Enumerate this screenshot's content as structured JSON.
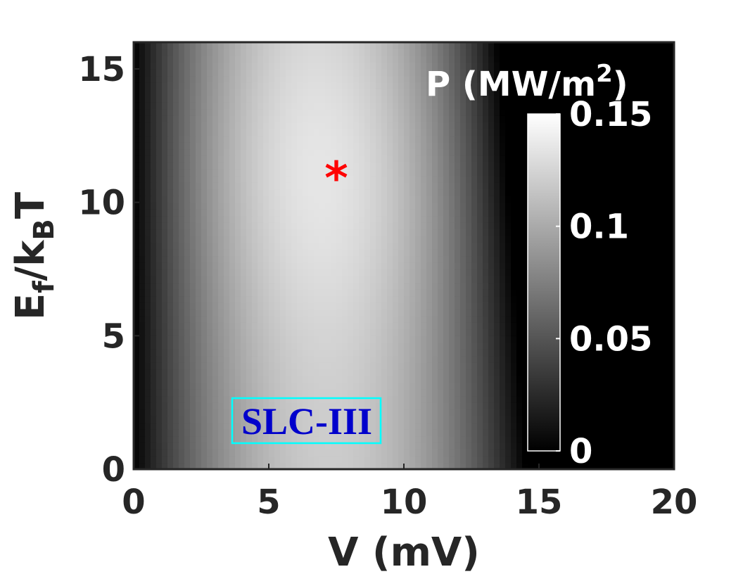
{
  "chart_data": {
    "type": "heatmap",
    "xlabel": "V (mV)",
    "ylabel": {
      "base": "E",
      "sub1": "f",
      "mid": "/k",
      "sub2": "B",
      "end": "T"
    },
    "xlim": [
      0,
      20
    ],
    "ylim": [
      0,
      16
    ],
    "xticks": [
      "0",
      "5",
      "10",
      "15",
      "20"
    ],
    "yticks": [
      "0",
      "5",
      "10",
      "15"
    ],
    "colormap": "gray",
    "colorbar": {
      "title": "P (MW/m",
      "title_sup": "2",
      "title_end": ")",
      "range": [
        0,
        0.15
      ],
      "ticks": [
        "0",
        "0.05",
        "0.1",
        "0.15"
      ],
      "tick_values": [
        0,
        0.05,
        0.1,
        0.15
      ],
      "placement": "inside-right"
    },
    "peak_marker": {
      "x": 7.5,
      "y": 11,
      "symbol": "*",
      "color": "#ff0000"
    },
    "annotation": {
      "text": "SLC-III",
      "text_color": "#0000cc",
      "box_color": "#00ffff"
    },
    "surface_shape": {
      "peak_value": 0.135,
      "peak_voltage_mV": 7.5,
      "zero_power_voltage_mV_at_low_E": 14.5,
      "zero_power_voltage_mV_at_high_E": 13.5
    }
  }
}
